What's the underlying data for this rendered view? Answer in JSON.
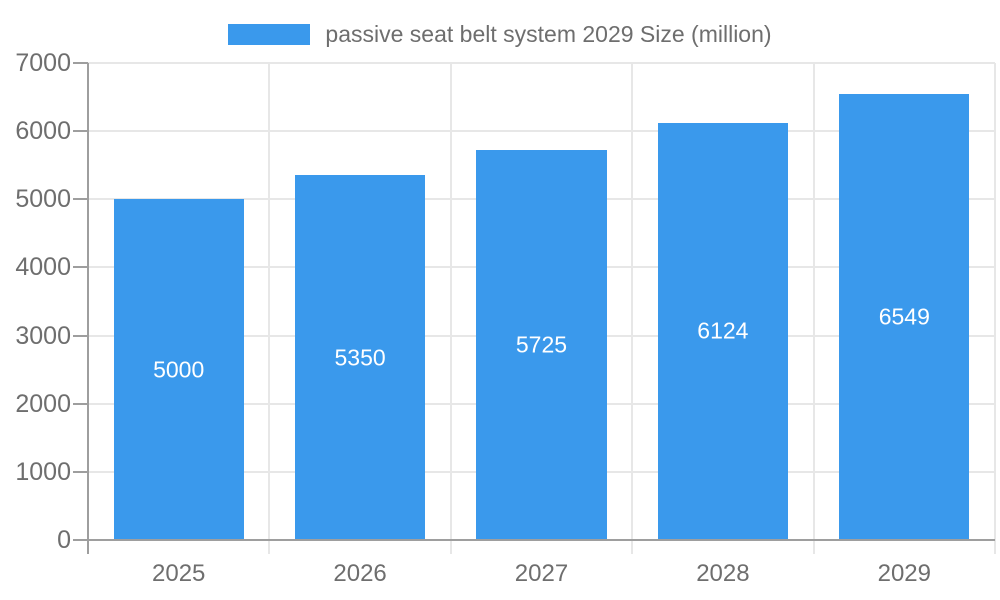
{
  "legend": {
    "label": "passive seat belt system 2029 Size (million)"
  },
  "chart_data": {
    "type": "bar",
    "title": "",
    "series_name": "passive seat belt system 2029 Size (million)",
    "categories": [
      "2025",
      "2026",
      "2027",
      "2028",
      "2029"
    ],
    "values": [
      5000,
      5350,
      5725,
      6124,
      6549
    ],
    "value_labels": [
      "5000",
      "5350",
      "5725",
      "6124",
      "6549"
    ],
    "xlabel": "",
    "ylabel": "",
    "ylim": [
      0,
      7000
    ],
    "yticks": [
      0,
      1000,
      2000,
      3000,
      4000,
      5000,
      6000,
      7000
    ],
    "grid": true,
    "legend_position": "top-center",
    "value_label_position": "inside-middle"
  },
  "colors": {
    "bar": "#3a99ec",
    "value_label": "#ffffff",
    "axis_line": "#9e9e9e",
    "gridline": "#e7e7e7",
    "tick_text": "#6e6e6e",
    "legend_text": "#6e6e6e",
    "background": "#ffffff"
  }
}
